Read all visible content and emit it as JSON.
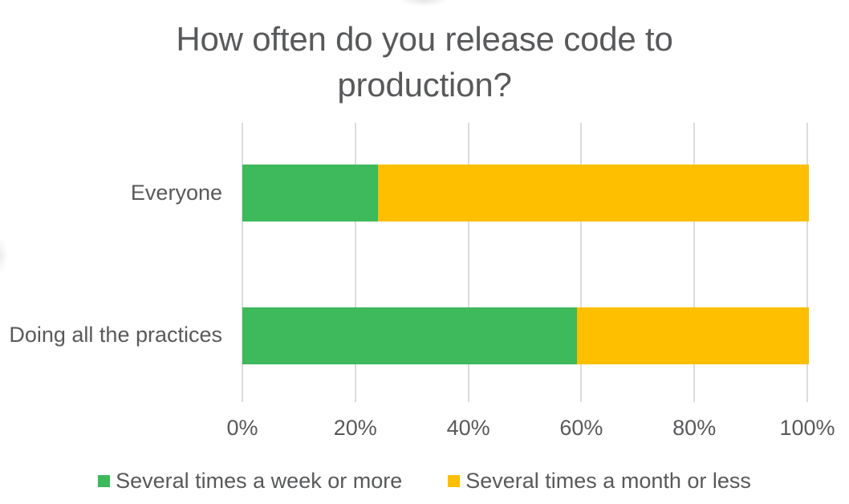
{
  "title": "How often do you release code to production?",
  "colors": {
    "series_green": "#3eb95c",
    "series_yellow": "#fdbf00",
    "text": "#58595b",
    "gridline": "#dcdcdc",
    "background": "#ffffff"
  },
  "chart_data": {
    "type": "bar",
    "orientation": "horizontal",
    "stacked": true,
    "title": "How often do you release code to production?",
    "categories": [
      "Everyone",
      "Doing all the practices"
    ],
    "series": [
      {
        "name": "Several times a week or more",
        "color": "#3eb95c",
        "values": [
          24,
          59
        ]
      },
      {
        "name": "Several times a month or less",
        "color": "#fdbf00",
        "values": [
          76,
          41
        ]
      }
    ],
    "xlabel": "",
    "ylabel": "",
    "xlim": [
      0,
      100
    ],
    "x_tick_labels": [
      "0%",
      "20%",
      "40%",
      "60%",
      "80%",
      "100%"
    ],
    "x_tick_values": [
      0,
      20,
      40,
      60,
      80,
      100
    ],
    "grid": true,
    "legend_position": "bottom"
  }
}
